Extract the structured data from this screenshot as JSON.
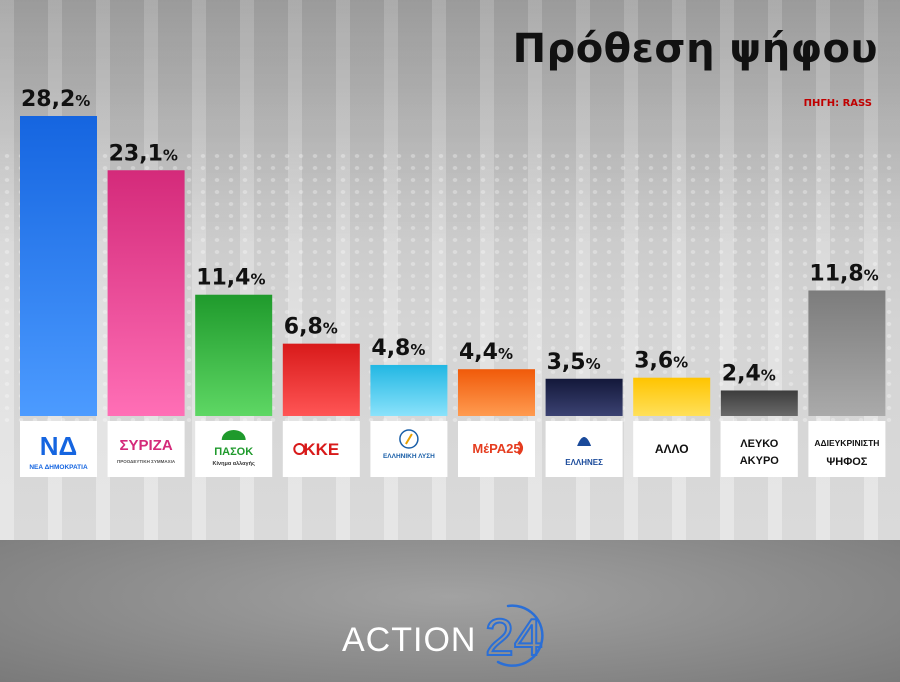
{
  "header": {
    "title": "Πρόθεση ψήφου",
    "source": "ΠΗΓΗ: RASS"
  },
  "chart_data": {
    "type": "bar",
    "title": "Πρόθεση ψήφου",
    "source": "ΠΗΓΗ: RASS",
    "xlabel": "",
    "ylabel": "",
    "ylim": [
      0,
      30
    ],
    "grid": false,
    "categories": [
      "ΝΔ",
      "ΣΥΡΙΖΑ",
      "ΠΑΣΟΚ",
      "ΚΚΕ",
      "ΕΛΛΗΝΙΚΗ ΛΥΣΗ",
      "ΜέΡΑ25",
      "ΕΛΛΗΝΕΣ",
      "ΑΛΛΟ",
      "ΛΕΥΚΟ ΑΚΥΡΟ",
      "ΑΔΙΕΥΚΡΙΝΙΣΤΗ ΨΗΦΟΣ"
    ],
    "values": [
      28.2,
      23.1,
      11.4,
      6.8,
      4.8,
      4.4,
      3.5,
      3.6,
      2.4,
      11.8
    ],
    "value_labels": [
      "28,2",
      "23,1",
      "11,4",
      "6,8",
      "4,8",
      "4,4",
      "3,5",
      "3,6",
      "2,4",
      "11,8"
    ],
    "unit": "%",
    "colors": [
      "#1565e0",
      "#d42a7a",
      "#1f9a2c",
      "#d81a1a",
      "#22b7e3",
      "#f05a0a",
      "#13183a",
      "#ffc400",
      "#3c3c3c",
      "#7c7c7c"
    ],
    "colors_light": [
      "#4c9bff",
      "#ff6fb6",
      "#5ed764",
      "#ff5555",
      "#8ae2fb",
      "#ff9b50",
      "#3b4272",
      "#ffe05a",
      "#6a6a6a",
      "#aaaaaa"
    ]
  },
  "parties": [
    {
      "name": "ΝΔ",
      "logo_text": "ΝΔ",
      "sub_text": "ΝΕΑ ΔΗΜΟΚΡΑΤΙΑ",
      "logo_color": "#1565e0",
      "icon": "nd-logo-icon"
    },
    {
      "name": "ΣΥΡΙΖΑ",
      "logo_text": "ΣΥΡΙΖΑ",
      "sub_text": "ΠΡΟΟΔΕΥΤΙΚΗ ΣΥΜΜΑΧΙΑ",
      "logo_color": "#d42a7a",
      "icon": "syriza-logo-icon"
    },
    {
      "name": "ΠΑΣΟΚ",
      "logo_text": "ΠΑΣΟΚ",
      "sub_text": "Κίνημα αλλαγής",
      "logo_color": "#1f9a2c",
      "icon": "pasok-sun-icon"
    },
    {
      "name": "ΚΚΕ",
      "logo_text": "ΚΚΕ",
      "sub_text": "",
      "logo_color": "#d81a1a",
      "icon": "kke-hammer-sickle-icon"
    },
    {
      "name": "ΕΛΛΗΝΙΚΗ ΛΥΣΗ",
      "logo_text": "ΕΛΛΗΝΙΚΗ ΛΥΣΗ",
      "sub_text": "",
      "logo_color": "#1a5fa8",
      "icon": "elliniki-lysi-emblem-icon"
    },
    {
      "name": "ΜέΡΑ25",
      "logo_text": "ΜέΡΑ25",
      "sub_text": "",
      "logo_color": "#e53c1f",
      "icon": "mera25-arrow-icon"
    },
    {
      "name": "ΕΛΛΗΝΕΣ",
      "logo_text": "ΕΛΛΗΝΕΣ",
      "sub_text": "",
      "logo_color": "#1a4a9a",
      "icon": "ellines-spartan-icon"
    },
    {
      "name": "ΑΛΛΟ",
      "logo_text": "ΑΛΛΟ",
      "sub_text": "",
      "logo_color": "#111111",
      "icon": ""
    },
    {
      "name": "ΛΕΥΚΟ ΑΚΥΡΟ",
      "logo_text": "ΛΕΥΚΟ",
      "sub_text": "ΑΚΥΡΟ",
      "logo_color": "#111111",
      "icon": ""
    },
    {
      "name": "ΑΔΙΕΥΚΡΙΝΙΣΤΗ ΨΗΦΟΣ",
      "logo_text": "ΑΔΙΕΥΚΡΙΝΙΣΤΗ",
      "sub_text": "ΨΗΦΟΣ",
      "logo_color": "#111111",
      "icon": ""
    }
  ],
  "footer": {
    "brand_text": "ACTION",
    "brand_number": "24",
    "brand_color": "#ffffff",
    "accent_color": "#2b6fd6"
  }
}
